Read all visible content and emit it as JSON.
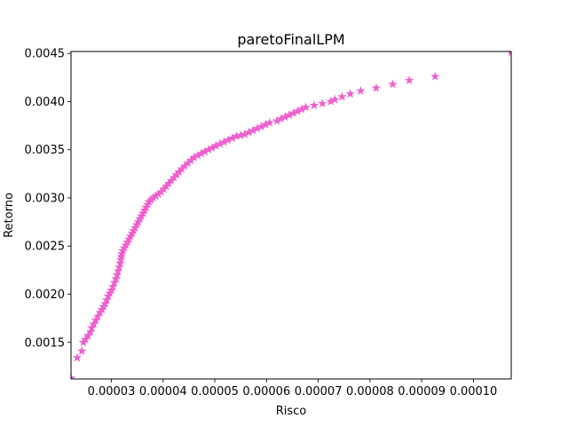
{
  "chart_data": {
    "type": "scatter",
    "title": "paretoFinalLPM",
    "xlabel": "Risco",
    "ylabel": "Retorno",
    "xlim": [
      2.22e-05,
      0.0001073
    ],
    "ylim": [
      0.00112,
      0.00452
    ],
    "xticks": [
      {
        "value": 3e-05,
        "label": "0.00003"
      },
      {
        "value": 4e-05,
        "label": "0.00004"
      },
      {
        "value": 5e-05,
        "label": "0.00005"
      },
      {
        "value": 6e-05,
        "label": "0.00006"
      },
      {
        "value": 7e-05,
        "label": "0.00007"
      },
      {
        "value": 8e-05,
        "label": "0.00008"
      },
      {
        "value": 9e-05,
        "label": "0.00009"
      },
      {
        "value": 0.0001,
        "label": "0.00010"
      }
    ],
    "yticks": [
      {
        "value": 0.0015,
        "label": "0.0015"
      },
      {
        "value": 0.002,
        "label": "0.0020"
      },
      {
        "value": 0.0025,
        "label": "0.0025"
      },
      {
        "value": 0.003,
        "label": "0.0030"
      },
      {
        "value": 0.0035,
        "label": "0.0035"
      },
      {
        "value": 0.004,
        "label": "0.0040"
      },
      {
        "value": 0.0045,
        "label": "0.0045"
      }
    ],
    "grid": false,
    "marker": "star",
    "color": "#ee5fce",
    "x": [
      2.22e-05,
      2.34e-05,
      2.43e-05,
      2.46e-05,
      2.5e-05,
      2.55e-05,
      2.6e-05,
      2.62e-05,
      2.66e-05,
      2.7e-05,
      2.74e-05,
      2.78e-05,
      2.82e-05,
      2.85e-05,
      2.88e-05,
      2.91e-05,
      2.94e-05,
      2.97e-05,
      3e-05,
      3.03e-05,
      3.06e-05,
      3.09e-05,
      3.11e-05,
      3.13e-05,
      3.15e-05,
      3.17e-05,
      3.18e-05,
      3.19e-05,
      3.2e-05,
      3.22e-05,
      3.25e-05,
      3.28e-05,
      3.31e-05,
      3.34e-05,
      3.37e-05,
      3.4e-05,
      3.43e-05,
      3.46e-05,
      3.49e-05,
      3.52e-05,
      3.55e-05,
      3.58e-05,
      3.61e-05,
      3.64e-05,
      3.67e-05,
      3.7e-05,
      3.73e-05,
      3.77e-05,
      3.81e-05,
      3.86e-05,
      3.91e-05,
      3.96e-05,
      4.01e-05,
      4.06e-05,
      4.11e-05,
      4.16e-05,
      4.21e-05,
      4.26e-05,
      4.31e-05,
      4.36e-05,
      4.42e-05,
      4.48e-05,
      4.54e-05,
      4.6e-05,
      4.67e-05,
      4.74e-05,
      4.81e-05,
      4.88e-05,
      4.95e-05,
      5.02e-05,
      5.1e-05,
      5.18e-05,
      5.26e-05,
      5.34e-05,
      5.42e-05,
      5.5e-05,
      5.58e-05,
      5.66e-05,
      5.74e-05,
      5.82e-05,
      5.9e-05,
      5.98e-05,
      6.06e-05,
      6.2e-05,
      6.28e-05,
      6.36e-05,
      6.44e-05,
      6.52e-05,
      6.6e-05,
      6.68e-05,
      6.76e-05,
      6.92e-05,
      7.08e-05,
      7.24e-05,
      7.32e-05,
      7.46e-05,
      7.62e-05,
      7.82e-05,
      8.12e-05,
      8.44e-05,
      8.76e-05,
      9.26e-05,
      0.0001073
    ],
    "y": [
      0.00113,
      0.00134,
      0.00141,
      0.0015,
      0.00153,
      0.00157,
      0.00161,
      0.00165,
      0.00169,
      0.00173,
      0.00177,
      0.00181,
      0.00184,
      0.00187,
      0.0019,
      0.00194,
      0.00198,
      0.00201,
      0.00204,
      0.00208,
      0.00212,
      0.00216,
      0.0022,
      0.00224,
      0.00228,
      0.00232,
      0.00236,
      0.00239,
      0.00242,
      0.00245,
      0.00248,
      0.00251,
      0.00254,
      0.00257,
      0.0026,
      0.00263,
      0.00266,
      0.00269,
      0.00272,
      0.00275,
      0.00278,
      0.00281,
      0.00284,
      0.00287,
      0.0029,
      0.00293,
      0.00296,
      0.00298,
      0.003,
      0.00302,
      0.00304,
      0.00306,
      0.00309,
      0.00312,
      0.00315,
      0.00318,
      0.00321,
      0.00324,
      0.00327,
      0.0033,
      0.00333,
      0.00336,
      0.00339,
      0.00342,
      0.00344,
      0.00346,
      0.00348,
      0.0035,
      0.00352,
      0.00354,
      0.00356,
      0.00358,
      0.0036,
      0.00362,
      0.00364,
      0.00365,
      0.00366,
      0.00368,
      0.0037,
      0.00372,
      0.00374,
      0.00376,
      0.00378,
      0.0038,
      0.00382,
      0.00384,
      0.00386,
      0.00388,
      0.0039,
      0.00392,
      0.00394,
      0.00396,
      0.00398,
      0.004,
      0.00402,
      0.00405,
      0.00408,
      0.00411,
      0.00414,
      0.00418,
      0.00422,
      0.00426,
      0.00451
    ]
  }
}
